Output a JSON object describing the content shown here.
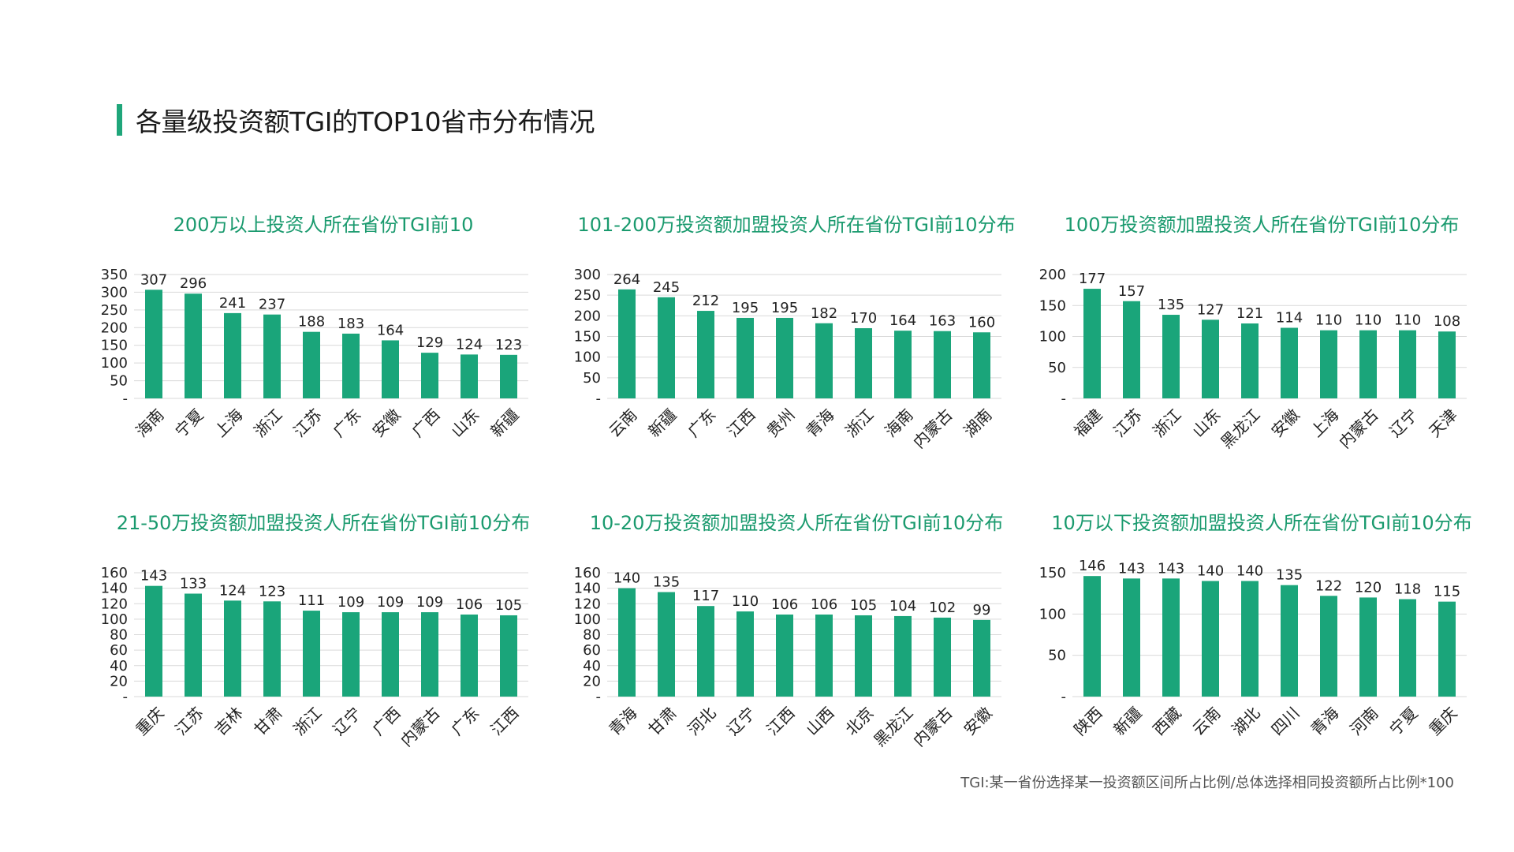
{
  "page": {
    "title": "各量级投资额TGI的TOP10省市分布情况",
    "footnote": "TGI:某一省份选择某一投资额区间所占比例/总体选择相同投资额所占比例*100",
    "accent_color": "#1fa67a",
    "bar_color": "#1aa57a"
  },
  "chart_data": [
    {
      "type": "bar",
      "title": "200万以上投资人所在省份TGI前10",
      "categories": [
        "海南",
        "宁夏",
        "上海",
        "浙江",
        "江苏",
        "广东",
        "安徽",
        "广西",
        "山东",
        "新疆"
      ],
      "values": [
        307,
        296,
        241,
        237,
        188,
        183,
        164,
        129,
        124,
        123
      ],
      "yticks": [
        0,
        50,
        100,
        150,
        200,
        250,
        300,
        350
      ],
      "ytick_labels": [
        "-",
        "50",
        "100",
        "150",
        "200",
        "250",
        "300",
        "350"
      ],
      "ylim": [
        0,
        350
      ],
      "grid": true
    },
    {
      "type": "bar",
      "title": "101-200万投资额加盟投资人所在省份TGI前10分布",
      "categories": [
        "云南",
        "新疆",
        "广东",
        "江西",
        "贵州",
        "青海",
        "浙江",
        "海南",
        "内蒙古",
        "湖南"
      ],
      "values": [
        264,
        245,
        212,
        195,
        195,
        182,
        170,
        164,
        163,
        160
      ],
      "yticks": [
        0,
        50,
        100,
        150,
        200,
        250,
        300
      ],
      "ytick_labels": [
        "-",
        "50",
        "100",
        "150",
        "200",
        "250",
        "300"
      ],
      "ylim": [
        0,
        300
      ],
      "grid": true
    },
    {
      "type": "bar",
      "title": "100万投资额加盟投资人所在省份TGI前10分布",
      "categories": [
        "福建",
        "江苏",
        "浙江",
        "山东",
        "黑龙江",
        "安徽",
        "上海",
        "内蒙古",
        "辽宁",
        "天津"
      ],
      "values": [
        177,
        157,
        135,
        127,
        121,
        114,
        110,
        110,
        110,
        108
      ],
      "yticks": [
        0,
        50,
        100,
        150,
        200
      ],
      "ytick_labels": [
        "-",
        "50",
        "100",
        "150",
        "200"
      ],
      "ylim": [
        0,
        200
      ],
      "grid": true
    },
    {
      "type": "bar",
      "title": "21-50万投资额加盟投资人所在省份TGI前10分布",
      "categories": [
        "重庆",
        "江苏",
        "吉林",
        "甘肃",
        "浙江",
        "辽宁",
        "广西",
        "内蒙古",
        "广东",
        "江西"
      ],
      "values": [
        143,
        133,
        124,
        123,
        111,
        109,
        109,
        109,
        106,
        105
      ],
      "yticks": [
        0,
        20,
        40,
        60,
        80,
        100,
        120,
        140,
        160
      ],
      "ytick_labels": [
        "-",
        "20",
        "40",
        "60",
        "80",
        "100",
        "120",
        "140",
        "160"
      ],
      "ylim": [
        0,
        160
      ],
      "grid": true
    },
    {
      "type": "bar",
      "title": "10-20万投资额加盟投资人所在省份TGI前10分布",
      "categories": [
        "青海",
        "甘肃",
        "河北",
        "辽宁",
        "江西",
        "山西",
        "北京",
        "黑龙江",
        "内蒙古",
        "安徽"
      ],
      "values": [
        140,
        135,
        117,
        110,
        106,
        106,
        105,
        104,
        102,
        99
      ],
      "yticks": [
        0,
        20,
        40,
        60,
        80,
        100,
        120,
        140,
        160
      ],
      "ytick_labels": [
        "-",
        "20",
        "40",
        "60",
        "80",
        "100",
        "120",
        "140",
        "160"
      ],
      "ylim": [
        0,
        160
      ],
      "grid": true
    },
    {
      "type": "bar",
      "title": "10万以下投资额加盟投资人所在省份TGI前10分布",
      "categories": [
        "陕西",
        "新疆",
        "西藏",
        "云南",
        "湖北",
        "四川",
        "青海",
        "河南",
        "宁夏",
        "重庆"
      ],
      "values": [
        146,
        143,
        143,
        140,
        140,
        135,
        122,
        120,
        118,
        115
      ],
      "yticks": [
        0,
        50,
        100,
        150
      ],
      "ytick_labels": [
        "-",
        "50",
        "100",
        "150"
      ],
      "ylim": [
        0,
        150
      ],
      "grid": true
    }
  ]
}
